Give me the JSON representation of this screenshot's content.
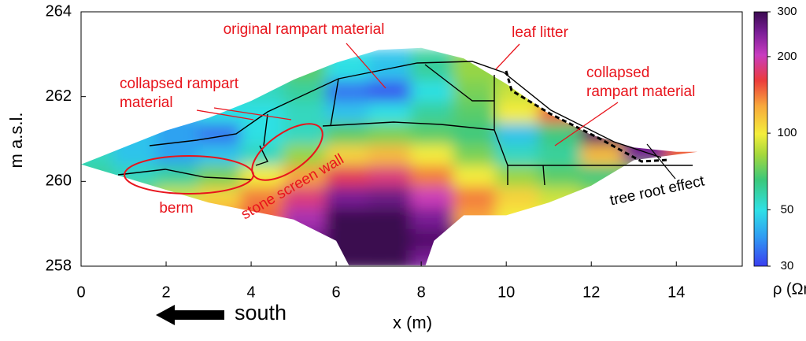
{
  "chart_data": {
    "type": "contour",
    "x_label": "x (m)",
    "y_label": "m a.s.l.",
    "xlim": [
      0,
      15.55
    ],
    "ylim": [
      258,
      264
    ],
    "xticks": [
      0,
      2,
      4,
      6,
      8,
      10,
      12,
      14
    ],
    "yticks": [
      258,
      260,
      262,
      264
    ],
    "x": [
      0.5,
      1.5,
      2.5,
      3.5,
      4.5,
      5.5,
      6.5,
      7.5,
      8.5,
      9.5,
      10.5,
      11.5,
      12.5,
      13.5,
      14.5
    ],
    "y": [
      258.25,
      258.75,
      259.25,
      259.75,
      260.25,
      260.75,
      261.25,
      261.75,
      262.25,
      262.75
    ],
    "z": [
      [
        null,
        null,
        null,
        null,
        null,
        250,
        300,
        300,
        250,
        null,
        null,
        null,
        null,
        null,
        null
      ],
      [
        null,
        null,
        null,
        null,
        null,
        250,
        300,
        300,
        280,
        null,
        null,
        null,
        null,
        null,
        null
      ],
      [
        null,
        null,
        null,
        130,
        150,
        220,
        300,
        300,
        250,
        130,
        100,
        null,
        null,
        null,
        null
      ],
      [
        null,
        75,
        90,
        110,
        140,
        180,
        250,
        260,
        200,
        140,
        110,
        90,
        80,
        null,
        null
      ],
      [
        60,
        55,
        60,
        75,
        100,
        130,
        170,
        180,
        140,
        100,
        80,
        70,
        65,
        80,
        null
      ],
      [
        55,
        45,
        40,
        45,
        55,
        80,
        110,
        120,
        100,
        75,
        55,
        60,
        120,
        250,
        150
      ],
      [
        null,
        45,
        40,
        35,
        50,
        55,
        70,
        75,
        70,
        65,
        45,
        65,
        280,
        null,
        null
      ],
      [
        null,
        null,
        null,
        50,
        50,
        55,
        45,
        50,
        60,
        70,
        100,
        150,
        null,
        null,
        null
      ],
      [
        null,
        null,
        null,
        null,
        55,
        60,
        35,
        32,
        50,
        75,
        90,
        null,
        null,
        null,
        null
      ],
      [
        null,
        null,
        null,
        null,
        null,
        70,
        50,
        45,
        60,
        80,
        null,
        null,
        null,
        null,
        null
      ]
    ],
    "colorbar": {
      "label": "ρ (Ωm)",
      "lim": [
        30,
        300
      ],
      "ticks": [
        30,
        50,
        100,
        200,
        300
      ],
      "log": true
    },
    "annotations": {
      "original": "original rampart material",
      "leaf": "leaf litter",
      "collapsed_left": [
        "collapsed rampart",
        "material"
      ],
      "collapsed_right": [
        "collapsed",
        "rampart material"
      ],
      "berm": "berm",
      "wall": "stone screen wall",
      "root": "tree root effect"
    },
    "direction": "south"
  }
}
